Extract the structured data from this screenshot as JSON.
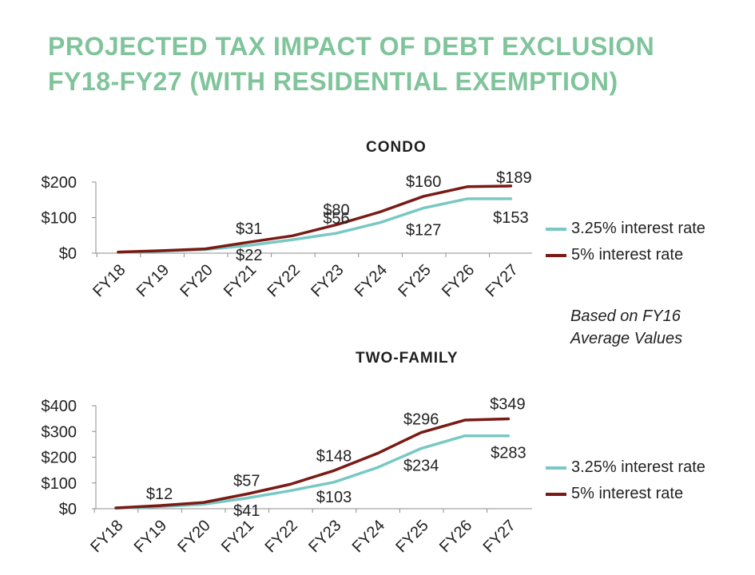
{
  "title_line1": "PROJECTED TAX IMPACT OF DEBT EXCLUSION",
  "title_line2": "FY18-FY27 (WITH RESIDENTIAL EXEMPTION)",
  "note_line1": "Based on FY16",
  "note_line2": "Average Values",
  "colors": {
    "rate325": "#78c8c4",
    "rate5": "#7a1a14",
    "title": "#7fc49a"
  },
  "chart_data": [
    {
      "type": "line",
      "title": "CONDO",
      "categories": [
        "FY18",
        "FY19",
        "FY20",
        "FY21",
        "FY22",
        "FY23",
        "FY24",
        "FY25",
        "FY26",
        "FY27"
      ],
      "ylim": [
        0,
        200
      ],
      "yticks": [
        0,
        100,
        200
      ],
      "ytick_labels": [
        "$0",
        "$100",
        "$200"
      ],
      "grid": false,
      "legend": "right",
      "series": [
        {
          "name": "3.25% interest rate",
          "color": "#78c8c4",
          "values": [
            2,
            6,
            10,
            22,
            38,
            56,
            86,
            127,
            153,
            153
          ],
          "labels": [
            null,
            null,
            null,
            "$22",
            null,
            "$56",
            null,
            "$127",
            null,
            "$153"
          ]
        },
        {
          "name": "5% interest rate",
          "color": "#7a1a14",
          "values": [
            3,
            7,
            12,
            31,
            49,
            80,
            116,
            160,
            187,
            189
          ],
          "labels": [
            null,
            null,
            null,
            "$31",
            null,
            "$80",
            null,
            "$160",
            null,
            "$189"
          ]
        }
      ]
    },
    {
      "type": "line",
      "title": "TWO-FAMILY",
      "categories": [
        "FY18",
        "FY19",
        "FY20",
        "FY21",
        "FY22",
        "FY23",
        "FY24",
        "FY25",
        "FY26",
        "FY27"
      ],
      "ylim": [
        0,
        400
      ],
      "yticks": [
        0,
        100,
        200,
        300,
        400
      ],
      "ytick_labels": [
        "$0",
        "$100",
        "$200",
        "$300",
        "$400"
      ],
      "grid": false,
      "legend": "right",
      "series": [
        {
          "name": "3.25% interest rate",
          "color": "#78c8c4",
          "values": [
            2,
            8,
            17,
            41,
            70,
            103,
            160,
            234,
            283,
            283
          ],
          "labels": [
            null,
            null,
            null,
            "$41",
            null,
            "$103",
            null,
            "$234",
            null,
            "$283"
          ]
        },
        {
          "name": "5% interest rate",
          "color": "#7a1a14",
          "values": [
            3,
            12,
            24,
            57,
            95,
            148,
            215,
            296,
            344,
            349
          ],
          "labels": [
            null,
            "$12",
            null,
            "$57",
            null,
            "$148",
            null,
            "$296",
            null,
            "$349"
          ]
        }
      ]
    }
  ]
}
